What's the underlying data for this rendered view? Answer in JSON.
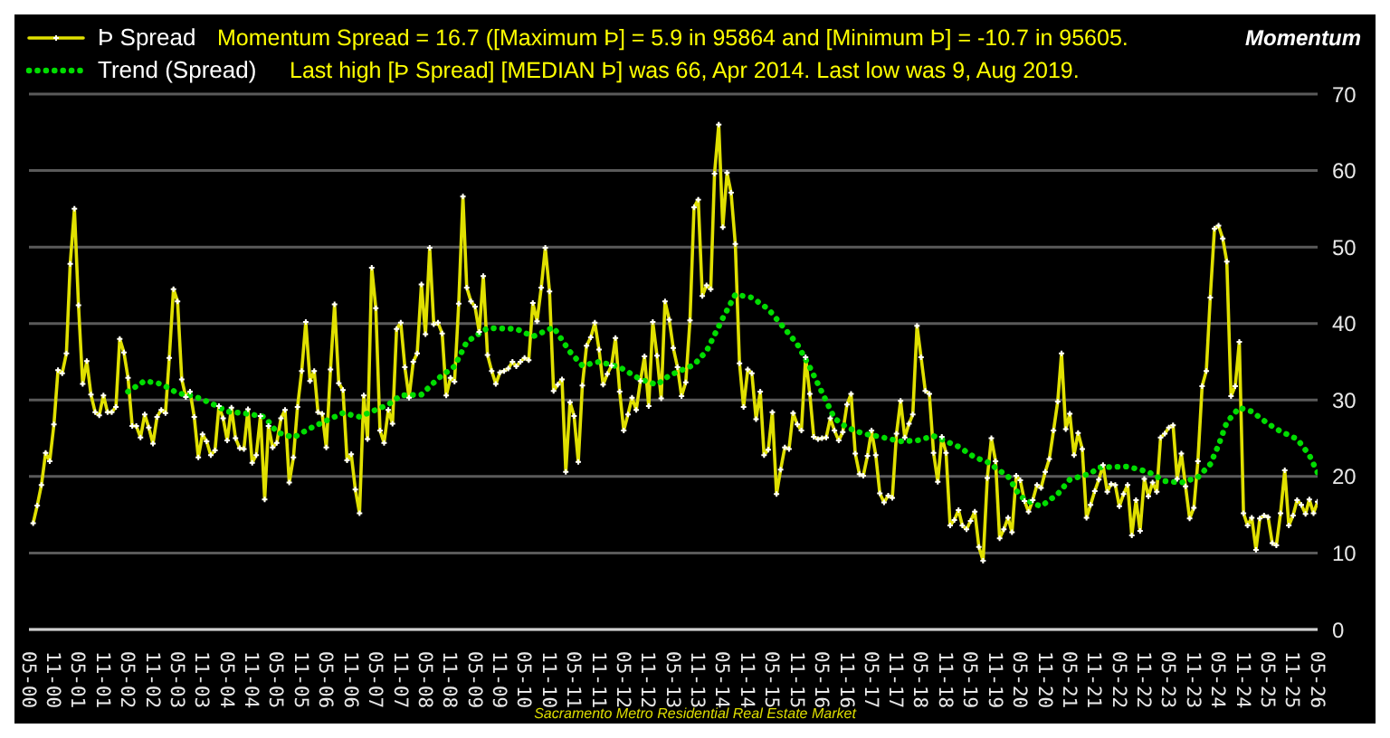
{
  "chart_data": {
    "type": "line",
    "title": "Momentum",
    "annotations": [
      "Momentum Spread = 16.7 ([Maximum Þ] = 5.9 in 95864 and [Minimum Þ] = -10.7 in 95605.",
      "Last high [Þ Spread] [MEDIAN Þ] was 66, Apr 2014. Last low was 9, Aug 2019.",
      "Sacramento Metro Residential Real Estate Market"
    ],
    "xlim": [
      "2000-05",
      "2026-05"
    ],
    "xticks": [
      {
        "value": "2000-05",
        "label": "05-00"
      },
      {
        "value": "2000-11",
        "label": "11-00"
      },
      {
        "value": "2001-05",
        "label": "05-01"
      },
      {
        "value": "2001-11",
        "label": "11-01"
      },
      {
        "value": "2002-05",
        "label": "05-02"
      },
      {
        "value": "2002-11",
        "label": "11-02"
      },
      {
        "value": "2003-05",
        "label": "05-03"
      },
      {
        "value": "2003-11",
        "label": "11-03"
      },
      {
        "value": "2004-05",
        "label": "05-04"
      },
      {
        "value": "2004-11",
        "label": "11-04"
      },
      {
        "value": "2005-05",
        "label": "05-05"
      },
      {
        "value": "2005-11",
        "label": "11-05"
      },
      {
        "value": "2006-05",
        "label": "05-06"
      },
      {
        "value": "2006-11",
        "label": "11-06"
      },
      {
        "value": "2007-05",
        "label": "05-07"
      },
      {
        "value": "2007-11",
        "label": "11-07"
      },
      {
        "value": "2008-05",
        "label": "05-08"
      },
      {
        "value": "2008-11",
        "label": "11-08"
      },
      {
        "value": "2009-05",
        "label": "05-09"
      },
      {
        "value": "2009-11",
        "label": "11-09"
      },
      {
        "value": "2010-05",
        "label": "05-10"
      },
      {
        "value": "2010-11",
        "label": "11-10"
      },
      {
        "value": "2011-05",
        "label": "05-11"
      },
      {
        "value": "2011-11",
        "label": "11-11"
      },
      {
        "value": "2012-05",
        "label": "05-12"
      },
      {
        "value": "2012-11",
        "label": "11-12"
      },
      {
        "value": "2013-05",
        "label": "05-13"
      },
      {
        "value": "2013-11",
        "label": "11-13"
      },
      {
        "value": "2014-05",
        "label": "05-14"
      },
      {
        "value": "2014-11",
        "label": "11-14"
      },
      {
        "value": "2015-05",
        "label": "05-15"
      },
      {
        "value": "2015-11",
        "label": "11-15"
      },
      {
        "value": "2016-05",
        "label": "05-16"
      },
      {
        "value": "2016-11",
        "label": "11-16"
      },
      {
        "value": "2017-05",
        "label": "05-17"
      },
      {
        "value": "2017-11",
        "label": "11-17"
      },
      {
        "value": "2018-05",
        "label": "05-18"
      },
      {
        "value": "2018-11",
        "label": "11-18"
      },
      {
        "value": "2019-05",
        "label": "05-19"
      },
      {
        "value": "2019-11",
        "label": "11-19"
      },
      {
        "value": "2020-05",
        "label": "05-20"
      },
      {
        "value": "2020-11",
        "label": "11-20"
      },
      {
        "value": "2021-05",
        "label": "05-21"
      },
      {
        "value": "2021-11",
        "label": "11-21"
      },
      {
        "value": "2022-05",
        "label": "05-22"
      },
      {
        "value": "2022-11",
        "label": "11-22"
      },
      {
        "value": "2023-05",
        "label": "05-23"
      },
      {
        "value": "2023-11",
        "label": "11-23"
      },
      {
        "value": "2024-05",
        "label": "05-24"
      },
      {
        "value": "2024-11",
        "label": "11-24"
      },
      {
        "value": "2025-05",
        "label": "05-25"
      },
      {
        "value": "2025-11",
        "label": "11-25"
      },
      {
        "value": "2026-05",
        "label": "05-26"
      }
    ],
    "ylim": [
      0,
      70
    ],
    "yticks": [
      0,
      10,
      20,
      30,
      40,
      50,
      60,
      70
    ],
    "grid": "y",
    "legend": "top left",
    "series": [
      {
        "name": "Þ Spread",
        "color": "#e0e000",
        "marker": "cross",
        "line_style": "solid",
        "x": [
          "2000-06",
          "2000-07",
          "2000-08",
          "2000-09",
          "2000-10",
          "2000-11",
          "2000-12",
          "2001-01",
          "2001-02",
          "2001-03",
          "2001-04",
          "2001-05",
          "2001-06",
          "2001-07",
          "2001-08",
          "2001-09",
          "2001-10",
          "2001-11",
          "2001-12",
          "2002-01",
          "2002-02",
          "2002-03",
          "2002-04",
          "2002-05",
          "2002-06",
          "2002-07",
          "2002-08",
          "2002-09",
          "2002-10",
          "2002-11",
          "2002-12",
          "2003-01",
          "2003-02",
          "2003-03",
          "2003-04",
          "2003-05",
          "2003-06",
          "2003-07",
          "2003-08",
          "2003-09",
          "2003-10",
          "2003-11",
          "2003-12",
          "2004-01",
          "2004-02",
          "2004-03",
          "2004-04",
          "2004-05",
          "2004-06",
          "2004-07",
          "2004-08",
          "2004-09",
          "2004-10",
          "2004-11",
          "2004-12",
          "2005-01",
          "2005-02",
          "2005-03",
          "2005-04",
          "2005-05",
          "2005-06",
          "2005-07",
          "2005-08",
          "2005-09",
          "2005-10",
          "2005-11",
          "2005-12",
          "2006-01",
          "2006-02",
          "2006-03",
          "2006-04",
          "2006-05",
          "2006-06",
          "2006-07",
          "2006-08",
          "2006-09",
          "2006-10",
          "2006-11",
          "2006-12",
          "2007-01",
          "2007-02",
          "2007-03",
          "2007-04",
          "2007-05",
          "2007-06",
          "2007-07",
          "2007-08",
          "2007-09",
          "2007-10",
          "2007-11",
          "2007-12",
          "2008-01",
          "2008-02",
          "2008-03",
          "2008-04",
          "2008-05",
          "2008-06",
          "2008-07",
          "2008-08",
          "2008-09",
          "2008-10",
          "2008-11",
          "2008-12",
          "2009-01",
          "2009-02",
          "2009-03",
          "2009-04",
          "2009-05",
          "2009-06",
          "2009-07",
          "2009-08",
          "2009-09",
          "2009-10",
          "2009-11",
          "2009-12",
          "2010-01",
          "2010-02",
          "2010-03",
          "2010-04",
          "2010-05",
          "2010-06",
          "2010-07",
          "2010-08",
          "2010-09",
          "2010-10",
          "2010-11",
          "2010-12",
          "2011-01",
          "2011-02",
          "2011-03",
          "2011-04",
          "2011-05",
          "2011-06",
          "2011-07",
          "2011-08",
          "2011-09",
          "2011-10",
          "2011-11",
          "2011-12",
          "2012-01",
          "2012-02",
          "2012-03",
          "2012-04",
          "2012-05",
          "2012-06",
          "2012-07",
          "2012-08",
          "2012-09",
          "2012-10",
          "2012-11",
          "2012-12",
          "2013-01",
          "2013-02",
          "2013-03",
          "2013-04",
          "2013-05",
          "2013-06",
          "2013-07",
          "2013-08",
          "2013-09",
          "2013-10",
          "2013-11",
          "2013-12",
          "2014-01",
          "2014-02",
          "2014-03",
          "2014-04",
          "2014-05",
          "2014-06",
          "2014-07",
          "2014-08",
          "2014-09",
          "2014-10",
          "2014-11",
          "2014-12",
          "2015-01",
          "2015-02",
          "2015-03",
          "2015-04",
          "2015-05",
          "2015-06",
          "2015-07",
          "2015-08",
          "2015-09",
          "2015-10",
          "2015-11",
          "2015-12",
          "2016-01",
          "2016-02",
          "2016-03",
          "2016-04",
          "2016-05",
          "2016-06",
          "2016-07",
          "2016-08",
          "2016-09",
          "2016-10",
          "2016-11",
          "2016-12",
          "2017-01",
          "2017-02",
          "2017-03",
          "2017-04",
          "2017-05",
          "2017-06",
          "2017-07",
          "2017-08",
          "2017-09",
          "2017-10",
          "2017-11",
          "2017-12",
          "2018-01",
          "2018-02",
          "2018-03",
          "2018-04",
          "2018-05",
          "2018-06",
          "2018-07",
          "2018-08",
          "2018-09",
          "2018-10",
          "2018-11",
          "2018-12",
          "2019-01",
          "2019-02",
          "2019-03",
          "2019-04",
          "2019-05",
          "2019-06",
          "2019-07",
          "2019-08",
          "2019-09",
          "2019-10",
          "2019-11",
          "2019-12",
          "2020-01",
          "2020-02",
          "2020-03",
          "2020-04",
          "2020-05",
          "2020-06",
          "2020-07",
          "2020-08",
          "2020-09",
          "2020-10",
          "2020-11",
          "2020-12",
          "2021-01",
          "2021-02",
          "2021-03",
          "2021-04",
          "2021-05",
          "2021-06",
          "2021-07",
          "2021-08",
          "2021-09",
          "2021-10",
          "2021-11",
          "2021-12",
          "2022-01",
          "2022-02",
          "2022-03",
          "2022-04",
          "2022-05",
          "2022-06",
          "2022-07",
          "2022-08",
          "2022-09",
          "2022-10",
          "2022-11",
          "2022-12",
          "2023-01",
          "2023-02",
          "2023-03",
          "2023-04",
          "2023-05",
          "2023-06",
          "2023-07",
          "2023-08",
          "2023-09",
          "2023-10",
          "2023-11",
          "2023-12",
          "2024-01",
          "2024-02",
          "2024-03",
          "2024-04",
          "2024-05",
          "2024-06",
          "2024-07",
          "2024-08",
          "2024-09",
          "2024-10",
          "2024-11",
          "2024-12",
          "2025-01",
          "2025-02",
          "2025-03",
          "2025-04",
          "2025-05",
          "2025-06",
          "2025-07",
          "2025-08",
          "2025-09",
          "2025-10",
          "2025-11",
          "2025-12",
          "2026-01",
          "2026-02",
          "2026-03",
          "2026-04",
          "2026-05"
        ],
        "values": [
          13.9,
          16.2,
          18.9,
          23.1,
          22.0,
          26.8,
          33.9,
          33.5,
          36.1,
          47.8,
          55.0,
          42.4,
          32.1,
          35.1,
          30.7,
          28.4,
          28.0,
          30.6,
          28.4,
          28.4,
          29.1,
          38.0,
          36.2,
          32.9,
          26.6,
          26.6,
          25.1,
          28.1,
          26.4,
          24.3,
          27.8,
          28.7,
          28.3,
          35.5,
          44.5,
          42.9,
          32.7,
          30.4,
          31.1,
          27.8,
          22.5,
          25.5,
          24.6,
          22.8,
          23.4,
          29.2,
          27.6,
          24.7,
          29.0,
          25.0,
          23.7,
          23.6,
          28.8,
          21.8,
          22.8,
          27.9,
          17.0,
          26.6,
          23.8,
          24.4,
          27.6,
          28.7,
          19.2,
          22.5,
          29.1,
          33.8,
          40.2,
          32.5,
          33.8,
          28.4,
          28.2,
          23.8,
          34.0,
          42.5,
          32.2,
          31.3,
          22.1,
          22.9,
          18.3,
          15.2,
          30.6,
          24.9,
          47.3,
          42.0,
          26.0,
          24.4,
          28.7,
          26.9,
          39.3,
          40.1,
          34.3,
          30.3,
          35.0,
          36.1,
          45.1,
          38.6,
          49.9,
          39.9,
          40.1,
          38.7,
          30.6,
          32.9,
          32.4,
          42.6,
          56.6,
          44.7,
          42.9,
          42.2,
          38.9,
          46.2,
          35.9,
          33.8,
          32.1,
          33.6,
          33.8,
          34.1,
          35.0,
          34.4,
          35.0,
          35.5,
          35.2,
          42.7,
          40.3,
          44.7,
          49.9,
          44.2,
          31.2,
          32.0,
          32.7,
          20.6,
          29.7,
          27.9,
          21.9,
          31.9,
          37.1,
          38.2,
          40.1,
          36.6,
          32.0,
          33.4,
          34.5,
          38.1,
          31.1,
          26.0,
          28.1,
          30.3,
          28.7,
          32.5,
          35.7,
          29.2,
          40.2,
          35.8,
          30.2,
          42.9,
          40.5,
          36.8,
          34.3,
          30.5,
          32.3,
          40.4,
          55.2,
          56.2,
          43.6,
          45.0,
          44.5,
          59.6,
          66,
          52.6,
          59.7,
          57.1,
          50.4,
          34.8,
          29.1,
          34.0,
          33.5,
          27.5,
          31.1,
          22.8,
          23.5,
          28.4,
          17.7,
          20.9,
          23.8,
          23.6,
          28.3,
          26.8,
          26.0,
          35.6,
          30.8,
          25.2,
          24.9,
          25.0,
          25.1,
          27.6,
          26.0,
          24.7,
          25.8,
          29.4,
          30.8,
          23.0,
          20.3,
          20.1,
          22.7,
          26.0,
          22.8,
          17.8,
          16.6,
          17.5,
          17.2,
          25.6,
          29.9,
          25.1,
          26.9,
          28.1,
          39.7,
          35.6,
          31.2,
          30.8,
          23.1,
          19.3,
          25.2,
          23.1,
          13.6,
          14.3,
          15.6,
          13.6,
          13.1,
          14.2,
          15.4,
          10.8,
          9,
          19.8,
          25.0,
          22.0,
          11.9,
          13.1,
          14.6,
          12.7,
          20.1,
          19.5,
          16.8,
          15.4,
          16.9,
          18.9,
          18.5,
          20.6,
          22.3,
          26.0,
          29.8,
          36.1,
          26.2,
          28.2,
          22.8,
          25.7,
          23.6,
          14.6,
          16.3,
          18.1,
          19.6,
          21.5,
          18.0,
          19.0,
          18.9,
          16.1,
          17.7,
          18.9,
          12.3,
          16.9,
          12.9,
          19.7,
          17.4,
          19.2,
          18.0,
          25.1,
          25.6,
          26.4,
          26.7,
          19.7,
          23.0,
          18.7,
          14.5,
          15.9,
          22.0,
          31.8,
          33.8,
          43.4,
          52.4,
          52.8,
          51.1,
          48.1,
          30.5,
          31.8,
          37.6,
          15.2,
          13.6,
          14.6,
          10.4,
          14.5,
          14.9,
          14.7,
          11.3,
          11.0,
          15.2,
          20.8,
          13.6,
          14.9,
          16.9,
          16.3,
          15.1,
          17.0,
          15.2,
          16.7
        ]
      },
      {
        "name": "Trend (Spread)",
        "color": "#00dd00",
        "marker": "none",
        "line_style": "dotted",
        "x": [
          "2002-05",
          "2002-09",
          "2003-01",
          "2003-05",
          "2003-09",
          "2004-01",
          "2004-05",
          "2004-10",
          "2005-02",
          "2005-05",
          "2005-09",
          "2006-01",
          "2006-05",
          "2006-09",
          "2007-01",
          "2007-04",
          "2007-08",
          "2007-11",
          "2008-04",
          "2008-08",
          "2008-12",
          "2009-03",
          "2009-08",
          "2010-03",
          "2010-07",
          "2010-12",
          "2011-04",
          "2011-07",
          "2011-11",
          "2012-04",
          "2012-09",
          "2013-01",
          "2013-04",
          "2013-10",
          "2014-01",
          "2014-05",
          "2014-08",
          "2014-12",
          "2015-04",
          "2015-08",
          "2015-11",
          "2016-02",
          "2016-05",
          "2016-08",
          "2016-11",
          "2017-03",
          "2017-07",
          "2017-12",
          "2018-04",
          "2018-08",
          "2019-02",
          "2019-06",
          "2019-09",
          "2020-02",
          "2020-05",
          "2020-08",
          "2020-10",
          "2021-02",
          "2021-05",
          "2021-10",
          "2021-12",
          "2022-07",
          "2022-12",
          "2023-04",
          "2023-08",
          "2023-12",
          "2024-03",
          "2024-05",
          "2024-07",
          "2024-10",
          "2025-01",
          "2025-05",
          "2025-08",
          "2025-12",
          "2026-03",
          "2026-05"
        ],
        "values": [
          31.1,
          32.5,
          32.1,
          30.9,
          30.5,
          29.6,
          28.5,
          28.2,
          27.8,
          25.8,
          25.1,
          26.3,
          27.3,
          28.3,
          27.8,
          28.5,
          29.4,
          30.6,
          30.7,
          32.8,
          34.4,
          37.6,
          39.4,
          39.3,
          38.3,
          39.5,
          36.3,
          34.5,
          35.0,
          34.3,
          32.7,
          32.0,
          33.2,
          34.6,
          36.4,
          40.7,
          43.8,
          43.4,
          41.9,
          39.3,
          37.3,
          34.3,
          31.0,
          27.6,
          26.4,
          25.6,
          25.2,
          24.6,
          24.7,
          25.3,
          23.9,
          22.5,
          21.9,
          20.0,
          17.4,
          16.5,
          16.1,
          17.7,
          19.6,
          20.4,
          21.2,
          21.3,
          20.6,
          19.4,
          19.2,
          19.9,
          21.6,
          24.1,
          27.1,
          29.0,
          28.5,
          26.9,
          25.9,
          24.9,
          22.8,
          20.5
        ]
      }
    ]
  }
}
